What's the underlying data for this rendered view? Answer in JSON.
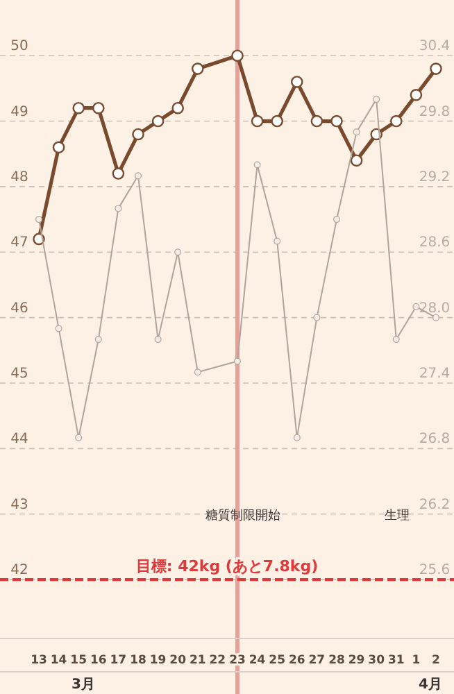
{
  "chart_data": {
    "type": "line",
    "categories": [
      "13",
      "14",
      "15",
      "16",
      "17",
      "18",
      "19",
      "20",
      "21",
      "22",
      "23",
      "24",
      "25",
      "26",
      "27",
      "28",
      "29",
      "30",
      "31",
      "1",
      "2"
    ],
    "series": [
      {
        "color": "#7a4a2e",
        "values": [
          47.2,
          48.6,
          49.2,
          49.2,
          48.2,
          48.8,
          49.0,
          49.2,
          49.8,
          null,
          50.0,
          49.0,
          49.0,
          49.6,
          49.0,
          49.0,
          48.4,
          48.8,
          49.0,
          49.4,
          49.8
        ]
      },
      {
        "color": "#b0a49a",
        "axis": "y2",
        "values": [
          28.9,
          27.9,
          26.9,
          27.8,
          29.0,
          29.3,
          27.8,
          28.6,
          27.5,
          null,
          27.6,
          29.4,
          28.7,
          26.9,
          28.0,
          28.9,
          29.7,
          30.0,
          27.8,
          28.1,
          28.0
        ]
      }
    ],
    "ylim": [
      41.1,
      50.85
    ],
    "yticks": [
      42,
      43,
      44,
      45,
      46,
      47,
      48,
      49,
      50
    ],
    "y2lim": [
      25.06,
      30.91
    ],
    "y2ticks": [
      25.6,
      26.2,
      26.8,
      27.4,
      {
        "value": 28.0,
        "label": "28.0"
      },
      28.6,
      29.2,
      29.8,
      30.4
    ],
    "grid": "y",
    "marker": "circle",
    "line_style": "solid",
    "ref_lines": [
      {
        "axis": "y",
        "value": 42,
        "label": "目標: 42kg (あと7.8kg)",
        "color": "#e0393c",
        "line_style": "dashed"
      },
      {
        "axis": "x",
        "value": "23",
        "color": "#e8a09a",
        "line_style": "solid"
      }
    ],
    "annotations": [
      "糖質制限開始",
      "生理",
      "3月",
      "4月"
    ]
  }
}
